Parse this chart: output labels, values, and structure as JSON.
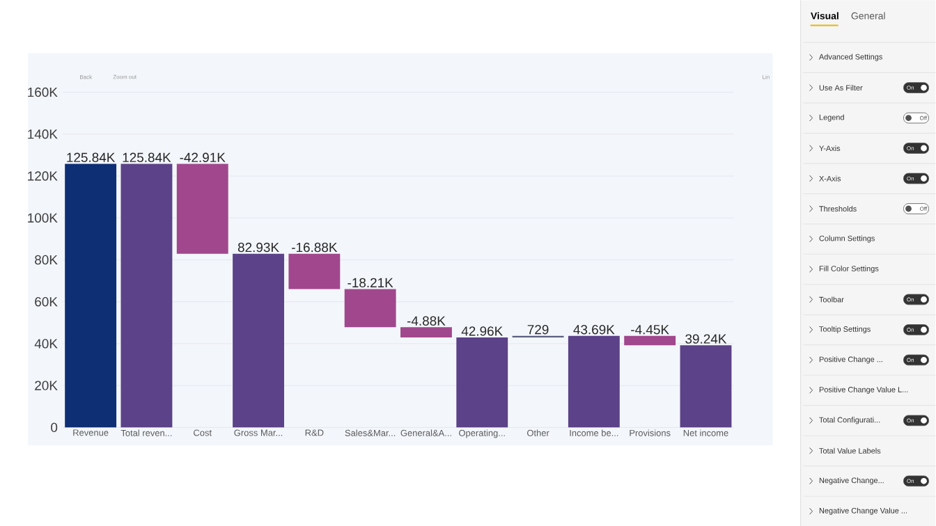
{
  "chart_data": [
    {
      "type": "bar",
      "categories": [
        "Revenue",
        "Total reven...",
        "Cost",
        "Gross Mar...",
        "R&D",
        "Sales&Mar...",
        "General&A...",
        "Operating...",
        "Other",
        "Income be...",
        "Provisions",
        "Net income"
      ],
      "values": [
        125840,
        125840,
        -42910,
        82930,
        -16880,
        -18210,
        -4880,
        42960,
        729,
        43690,
        -4450,
        39240
      ],
      "base": [
        0,
        0,
        125840,
        0,
        82930,
        66050,
        47840,
        0,
        42960,
        0,
        43690,
        0
      ],
      "colors": [
        "#0e2f74",
        "#5c4288",
        "#a1478d",
        "#5c4288",
        "#a1478d",
        "#a1478d",
        "#a1478d",
        "#5c4288",
        "#5a5f80",
        "#5c4288",
        "#a1478d",
        "#5c4288"
      ],
      "value_labels": [
        "125.84K",
        "125.84K",
        "-42.91K",
        "82.93K",
        "-16.88K",
        "-18.21K",
        "-4.88K",
        "42.96K",
        "729",
        "43.69K",
        "-4.45K",
        "39.24K"
      ],
      "ylim": [
        0,
        160000
      ],
      "yticks": [
        0,
        {
          "value": 20000,
          "label": "20K"
        },
        {
          "value": 40000,
          "label": "40K"
        },
        {
          "value": 60000,
          "label": "60K"
        },
        {
          "value": 80000,
          "label": "80K"
        },
        {
          "value": 100000,
          "label": "100K"
        },
        {
          "value": 120000,
          "label": "120K"
        },
        {
          "value": 140000,
          "label": "140K"
        },
        {
          "value": 160000,
          "label": "160K"
        }
      ],
      "grid": "y",
      "annotations": [
        "Back",
        "Zoom out",
        "Lin"
      ]
    },
    {
      "type": "other",
      "title": "Visual",
      "subtitle": "General",
      "categories": [
        "Advanced Settings",
        "Use As Filter",
        "Legend",
        "Y-Axis",
        "X-Axis",
        "Thresholds",
        "Column Settings",
        "Fill Color Settings",
        "Toolbar",
        "Tooltip Settings",
        "Positive Change ...",
        "Positive Change Value L...",
        "Total Configurati...",
        "Total Value Labels",
        "Negative Change...",
        "Negative Change Value ..."
      ],
      "value_labels": [
        null,
        "On",
        "Off",
        "On",
        "On",
        "Off",
        null,
        null,
        "On",
        "On",
        "On",
        null,
        "On",
        null,
        "On",
        null
      ],
      "colors": [
        null,
        "#333333",
        "#ffffff",
        "#333333",
        "#333333",
        "#ffffff",
        null,
        null,
        "#333333",
        "#333333",
        "#333333",
        null,
        "#333333",
        null,
        "#333333",
        null
      ]
    }
  ]
}
